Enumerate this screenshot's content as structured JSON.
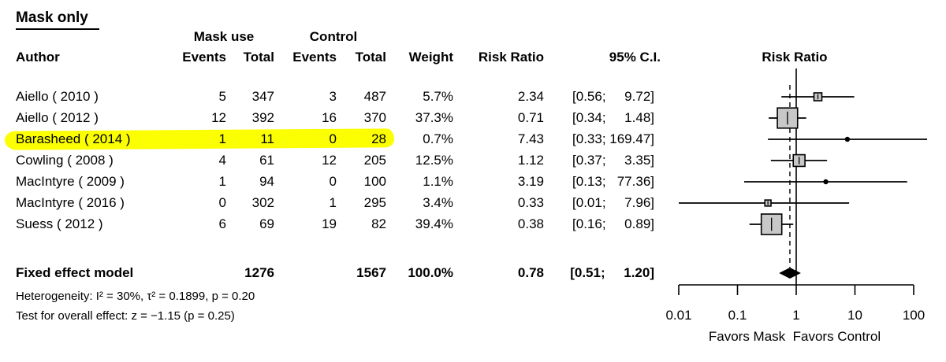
{
  "title": "Mask only",
  "columns": {
    "group_mask": "Mask use",
    "group_control": "Control",
    "author": "Author",
    "events": "Events",
    "total": "Total",
    "weight": "Weight",
    "risk_ratio": "Risk Ratio",
    "ci": "95% C.I.",
    "plot_title": "Risk Ratio"
  },
  "studies": [
    {
      "author": "Aiello ( 2010 )",
      "events_mask": "5",
      "total_mask": "347",
      "events_control": "3",
      "total_control": "487",
      "weight": "5.7%",
      "rr": "2.34",
      "ci": "[0.56;   9.72]",
      "highlighted": false
    },
    {
      "author": "Aiello ( 2012 )",
      "events_mask": "12",
      "total_mask": "392",
      "events_control": "16",
      "total_control": "370",
      "weight": "37.3%",
      "rr": "0.71",
      "ci": "[0.34;   1.48]",
      "highlighted": false
    },
    {
      "author": "Barasheed ( 2014 )",
      "events_mask": "1",
      "total_mask": "11",
      "events_control": "0",
      "total_control": "28",
      "weight": "0.7%",
      "rr": "7.43",
      "ci": "[0.33; 169.47]",
      "highlighted": true
    },
    {
      "author": "Cowling ( 2008 )",
      "events_mask": "4",
      "total_mask": "61",
      "events_control": "12",
      "total_control": "205",
      "weight": "12.5%",
      "rr": "1.12",
      "ci": "[0.37;   3.35]",
      "highlighted": false
    },
    {
      "author": "MacIntyre ( 2009 )",
      "events_mask": "1",
      "total_mask": "94",
      "events_control": "0",
      "total_control": "100",
      "weight": "1.1%",
      "rr": "3.19",
      "ci": "[0.13;  77.36]",
      "highlighted": false
    },
    {
      "author": "MacIntyre ( 2016 )",
      "events_mask": "0",
      "total_mask": "302",
      "events_control": "1",
      "total_control": "295",
      "weight": "3.4%",
      "rr": "0.33",
      "ci": "[0.01;   7.96]",
      "highlighted": false
    },
    {
      "author": "Suess ( 2012 )",
      "events_mask": "6",
      "total_mask": "69",
      "events_control": "19",
      "total_control": "82",
      "weight": "39.4%",
      "rr": "0.38",
      "ci": "[0.16;   0.89]",
      "highlighted": false
    }
  ],
  "summary": {
    "label": "Fixed effect model",
    "total_mask": "1276",
    "total_control": "1567",
    "weight": "100.0%",
    "rr": "0.78",
    "ci": "[0.51;   1.20]"
  },
  "stats": {
    "heterogeneity": "Heterogeneity: I² = 30%, τ² = 0.1899, p = 0.20",
    "overall_test": "Test for overall effect: z = −1.15 (p = 0.25)"
  },
  "colors": {
    "highlight": "#fcff02",
    "marker_fill": "#c8c8c8",
    "marker_stroke": "#000000",
    "diamond": "#000000",
    "line": "#000000"
  },
  "chart_data": {
    "type": "scatter",
    "subtype": "forest-plot",
    "title": "Risk Ratio",
    "xlabel": "Favors Mask  Favors Control",
    "x_scale": "log10",
    "xlim": [
      0.01,
      100
    ],
    "x_ticks": [
      0.01,
      0.1,
      1,
      10,
      100
    ],
    "x_tick_labels": [
      "0.01",
      "0.1",
      "1",
      "10",
      "100"
    ],
    "reference_line_x": 1,
    "pooled_dashed_line_x": 0.78,
    "points": [
      {
        "label": "Aiello ( 2010 )",
        "rr": 2.34,
        "ci": [
          0.56,
          9.72
        ],
        "weight_pct": 5.7
      },
      {
        "label": "Aiello ( 2012 )",
        "rr": 0.71,
        "ci": [
          0.34,
          1.48
        ],
        "weight_pct": 37.3
      },
      {
        "label": "Barasheed ( 2014 )",
        "rr": 7.43,
        "ci": [
          0.33,
          169.47
        ],
        "weight_pct": 0.7
      },
      {
        "label": "Cowling ( 2008 )",
        "rr": 1.12,
        "ci": [
          0.37,
          3.35
        ],
        "weight_pct": 12.5
      },
      {
        "label": "MacIntyre ( 2009 )",
        "rr": 3.19,
        "ci": [
          0.13,
          77.36
        ],
        "weight_pct": 1.1
      },
      {
        "label": "MacIntyre ( 2016 )",
        "rr": 0.33,
        "ci": [
          0.01,
          7.96
        ],
        "weight_pct": 3.4
      },
      {
        "label": "Suess ( 2012 )",
        "rr": 0.38,
        "ci": [
          0.16,
          0.89
        ],
        "weight_pct": 39.4
      }
    ],
    "summary_diamond": {
      "label": "Fixed effect model",
      "rr": 0.78,
      "ci": [
        0.51,
        1.2
      ],
      "weight_pct": 100.0
    }
  }
}
